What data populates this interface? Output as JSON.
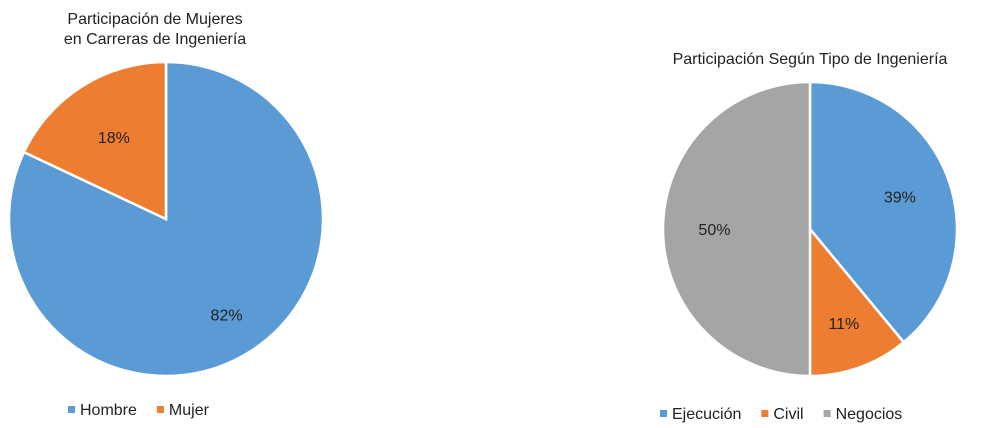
{
  "chart_data": [
    {
      "type": "pie",
      "title": [
        "Participación de Mujeres",
        "en Carreras de Ingeniería"
      ],
      "categories": [
        "Hombre",
        "Mujer"
      ],
      "values": [
        82,
        18
      ],
      "labels": [
        "82%",
        "18%"
      ],
      "colors": [
        "#5B9BD5",
        "#ED7D31"
      ],
      "legend": "bottom"
    },
    {
      "type": "pie",
      "title": [
        "Participación Según Tipo de Ingeniería"
      ],
      "categories": [
        "Ejecución",
        "Civil",
        "Negocios"
      ],
      "values": [
        39,
        11,
        50
      ],
      "labels": [
        "39%",
        "11%",
        "50%"
      ],
      "colors": [
        "#5B9BD5",
        "#ED7D31",
        "#A5A5A5"
      ],
      "legend": "bottom"
    }
  ]
}
